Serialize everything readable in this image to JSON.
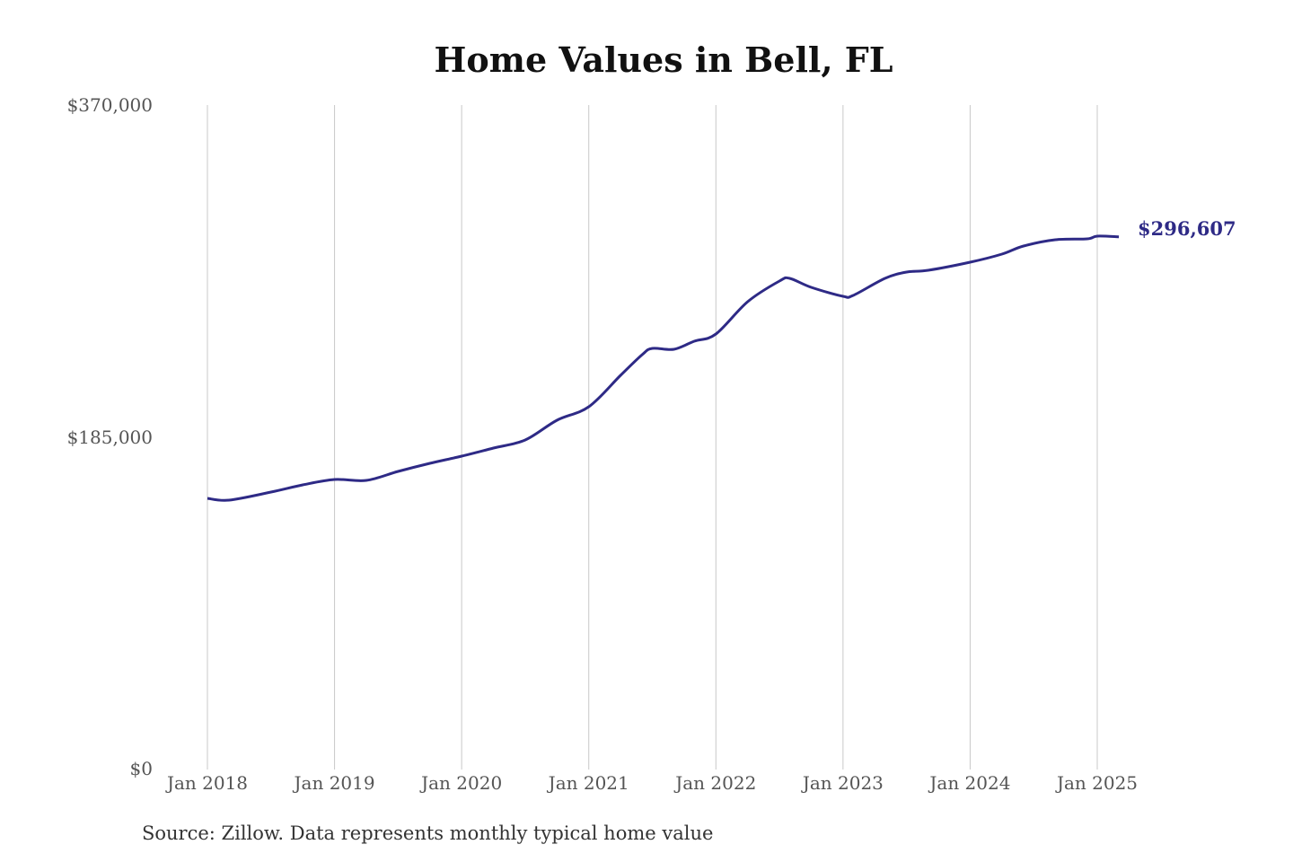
{
  "chart_data": {
    "type": "line",
    "title": "Home Values in Bell, FL",
    "source": "Source: Zillow. Data represents monthly typical home value",
    "xlabel": "",
    "ylabel": "",
    "ylim": [
      0,
      370000
    ],
    "yticks": [
      0,
      185000,
      370000
    ],
    "ytick_labels": [
      "$0",
      "$185,000",
      "$370,000"
    ],
    "xlim": [
      2018,
      2025.17
    ],
    "xticks": [
      2018,
      2019,
      2020,
      2021,
      2022,
      2023,
      2024,
      2025
    ],
    "xtick_labels": [
      "Jan 2018",
      "Jan 2019",
      "Jan 2020",
      "Jan 2021",
      "Jan 2022",
      "Jan 2023",
      "Jan 2024",
      "Jan 2025"
    ],
    "grid": "vertical",
    "color": "#2e2a86",
    "end_label": "$296,607",
    "series": [
      {
        "name": "Typical home value",
        "x": [
          2018,
          2018.17,
          2018.5,
          2018.75,
          2019,
          2019.25,
          2019.5,
          2019.75,
          2020,
          2020.25,
          2020.5,
          2020.75,
          2021,
          2021.25,
          2021.42,
          2021.5,
          2021.67,
          2021.83,
          2022,
          2022.25,
          2022.5,
          2022.58,
          2022.75,
          2023,
          2023.08,
          2023.33,
          2023.5,
          2023.67,
          2024,
          2024.25,
          2024.42,
          2024.67,
          2024.92,
          2025,
          2025.17
        ],
        "values": [
          151000,
          150000,
          154500,
          158500,
          161500,
          161000,
          166000,
          170500,
          174500,
          179000,
          183500,
          194500,
          202000,
          219500,
          231000,
          234500,
          234000,
          238500,
          242500,
          260500,
          272000,
          273500,
          268500,
          263500,
          264000,
          273500,
          277000,
          278000,
          282500,
          287000,
          291500,
          295000,
          295500,
          297000,
          296607
        ]
      }
    ]
  }
}
